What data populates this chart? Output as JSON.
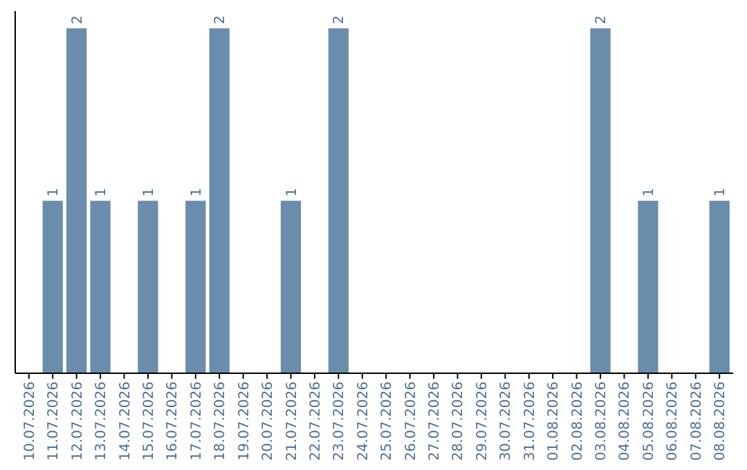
{
  "chart_data": {
    "type": "bar",
    "categories": [
      "10.07.2026",
      "11.07.2026",
      "12.07.2026",
      "13.07.2026",
      "14.07.2026",
      "15.07.2026",
      "16.07.2026",
      "17.07.2026",
      "18.07.2026",
      "19.07.2026",
      "20.07.2026",
      "21.07.2026",
      "22.07.2026",
      "23.07.2026",
      "24.07.2026",
      "25.07.2026",
      "26.07.2026",
      "27.07.2026",
      "28.07.2026",
      "29.07.2026",
      "30.07.2026",
      "31.07.2026",
      "01.08.2026",
      "02.08.2026",
      "03.08.2026",
      "04.08.2026",
      "05.08.2026",
      "06.08.2026",
      "07.08.2026",
      "08.08.2026"
    ],
    "values": [
      0,
      1,
      2,
      1,
      0,
      1,
      0,
      1,
      2,
      0,
      0,
      1,
      0,
      2,
      0,
      0,
      0,
      0,
      0,
      0,
      0,
      0,
      0,
      0,
      2,
      0,
      1,
      0,
      0,
      1
    ],
    "value_labels": [
      null,
      "1",
      "2",
      "1",
      null,
      "1",
      null,
      "1",
      "2",
      null,
      null,
      "1",
      null,
      "2",
      null,
      null,
      null,
      null,
      null,
      null,
      null,
      null,
      null,
      null,
      "2",
      null,
      "1",
      null,
      null,
      "1"
    ],
    "color": "#6a8cad"
  }
}
